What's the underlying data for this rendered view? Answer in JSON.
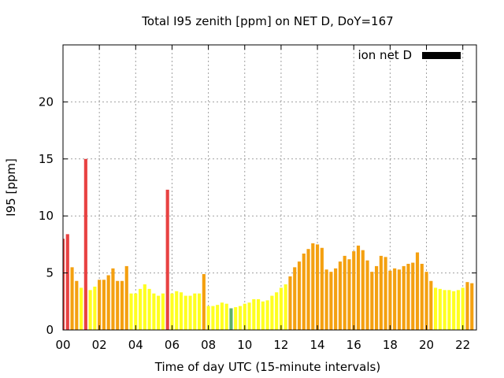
{
  "chart_data": {
    "type": "bar",
    "title": "Total I95 zenith [ppm] on NET D, DoY=167",
    "xlabel": "Time of day UTC (15-minute intervals)",
    "ylabel": "I95 [ppm]",
    "xlim": [
      0,
      22.75
    ],
    "ylim": [
      0,
      25
    ],
    "x_ticks": [
      "00",
      "02",
      "04",
      "06",
      "08",
      "10",
      "12",
      "14",
      "16",
      "18",
      "20",
      "22"
    ],
    "y_ticks": [
      "0",
      "5",
      "10",
      "15",
      "20"
    ],
    "grid": true,
    "legend": {
      "label": "ion net D",
      "color": "#000000",
      "placement": "top-right"
    },
    "category_colors": {
      "red": "#e84242",
      "orange": "#f4a010",
      "yellow": "#ffff20",
      "green": "#5db06c"
    },
    "bars": [
      {
        "t": 0.0,
        "v": 8.0,
        "c": "red"
      },
      {
        "t": 0.25,
        "v": 8.4,
        "c": "red"
      },
      {
        "t": 0.5,
        "v": 5.5,
        "c": "orange"
      },
      {
        "t": 0.75,
        "v": 4.3,
        "c": "orange"
      },
      {
        "t": 1.0,
        "v": 3.7,
        "c": "yellow"
      },
      {
        "t": 1.25,
        "v": 15.0,
        "c": "red"
      },
      {
        "t": 1.5,
        "v": 3.5,
        "c": "yellow"
      },
      {
        "t": 1.75,
        "v": 3.8,
        "c": "yellow"
      },
      {
        "t": 2.0,
        "v": 4.4,
        "c": "orange"
      },
      {
        "t": 2.25,
        "v": 4.4,
        "c": "orange"
      },
      {
        "t": 2.5,
        "v": 4.8,
        "c": "orange"
      },
      {
        "t": 2.75,
        "v": 5.4,
        "c": "orange"
      },
      {
        "t": 3.0,
        "v": 4.3,
        "c": "orange"
      },
      {
        "t": 3.25,
        "v": 4.3,
        "c": "orange"
      },
      {
        "t": 3.5,
        "v": 5.6,
        "c": "orange"
      },
      {
        "t": 3.75,
        "v": 3.2,
        "c": "yellow"
      },
      {
        "t": 4.0,
        "v": 3.2,
        "c": "yellow"
      },
      {
        "t": 4.25,
        "v": 3.6,
        "c": "yellow"
      },
      {
        "t": 4.5,
        "v": 4.0,
        "c": "yellow"
      },
      {
        "t": 4.75,
        "v": 3.6,
        "c": "yellow"
      },
      {
        "t": 5.0,
        "v": 3.2,
        "c": "yellow"
      },
      {
        "t": 5.25,
        "v": 3.0,
        "c": "yellow"
      },
      {
        "t": 5.5,
        "v": 3.2,
        "c": "yellow"
      },
      {
        "t": 5.75,
        "v": 12.3,
        "c": "red"
      },
      {
        "t": 6.0,
        "v": 3.2,
        "c": "yellow"
      },
      {
        "t": 6.25,
        "v": 3.4,
        "c": "yellow"
      },
      {
        "t": 6.5,
        "v": 3.3,
        "c": "yellow"
      },
      {
        "t": 6.75,
        "v": 3.0,
        "c": "yellow"
      },
      {
        "t": 7.0,
        "v": 3.0,
        "c": "yellow"
      },
      {
        "t": 7.25,
        "v": 3.2,
        "c": "yellow"
      },
      {
        "t": 7.5,
        "v": 3.2,
        "c": "yellow"
      },
      {
        "t": 7.75,
        "v": 4.9,
        "c": "orange"
      },
      {
        "t": 8.0,
        "v": 2.1,
        "c": "yellow"
      },
      {
        "t": 8.25,
        "v": 2.1,
        "c": "yellow"
      },
      {
        "t": 8.5,
        "v": 2.2,
        "c": "yellow"
      },
      {
        "t": 8.75,
        "v": 2.4,
        "c": "yellow"
      },
      {
        "t": 9.0,
        "v": 2.3,
        "c": "yellow"
      },
      {
        "t": 9.25,
        "v": 1.9,
        "c": "green"
      },
      {
        "t": 9.5,
        "v": 2.0,
        "c": "yellow"
      },
      {
        "t": 9.75,
        "v": 2.1,
        "c": "yellow"
      },
      {
        "t": 10.0,
        "v": 2.3,
        "c": "yellow"
      },
      {
        "t": 10.25,
        "v": 2.4,
        "c": "yellow"
      },
      {
        "t": 10.5,
        "v": 2.7,
        "c": "yellow"
      },
      {
        "t": 10.75,
        "v": 2.7,
        "c": "yellow"
      },
      {
        "t": 11.0,
        "v": 2.5,
        "c": "yellow"
      },
      {
        "t": 11.25,
        "v": 2.6,
        "c": "yellow"
      },
      {
        "t": 11.5,
        "v": 3.0,
        "c": "yellow"
      },
      {
        "t": 11.75,
        "v": 3.3,
        "c": "yellow"
      },
      {
        "t": 12.0,
        "v": 3.7,
        "c": "yellow"
      },
      {
        "t": 12.25,
        "v": 4.0,
        "c": "yellow"
      },
      {
        "t": 12.5,
        "v": 4.7,
        "c": "orange"
      },
      {
        "t": 12.75,
        "v": 5.5,
        "c": "orange"
      },
      {
        "t": 13.0,
        "v": 6.0,
        "c": "orange"
      },
      {
        "t": 13.25,
        "v": 6.7,
        "c": "orange"
      },
      {
        "t": 13.5,
        "v": 7.1,
        "c": "orange"
      },
      {
        "t": 13.75,
        "v": 7.6,
        "c": "orange"
      },
      {
        "t": 14.0,
        "v": 7.5,
        "c": "orange"
      },
      {
        "t": 14.25,
        "v": 7.2,
        "c": "orange"
      },
      {
        "t": 14.5,
        "v": 5.3,
        "c": "orange"
      },
      {
        "t": 14.75,
        "v": 5.1,
        "c": "orange"
      },
      {
        "t": 15.0,
        "v": 5.4,
        "c": "orange"
      },
      {
        "t": 15.25,
        "v": 6.0,
        "c": "orange"
      },
      {
        "t": 15.5,
        "v": 6.5,
        "c": "orange"
      },
      {
        "t": 15.75,
        "v": 6.2,
        "c": "orange"
      },
      {
        "t": 16.0,
        "v": 6.9,
        "c": "orange"
      },
      {
        "t": 16.25,
        "v": 7.4,
        "c": "orange"
      },
      {
        "t": 16.5,
        "v": 7.0,
        "c": "orange"
      },
      {
        "t": 16.75,
        "v": 6.1,
        "c": "orange"
      },
      {
        "t": 17.0,
        "v": 5.1,
        "c": "orange"
      },
      {
        "t": 17.25,
        "v": 5.6,
        "c": "orange"
      },
      {
        "t": 17.5,
        "v": 6.5,
        "c": "orange"
      },
      {
        "t": 17.75,
        "v": 6.4,
        "c": "orange"
      },
      {
        "t": 18.0,
        "v": 5.2,
        "c": "orange"
      },
      {
        "t": 18.25,
        "v": 5.4,
        "c": "orange"
      },
      {
        "t": 18.5,
        "v": 5.3,
        "c": "orange"
      },
      {
        "t": 18.75,
        "v": 5.6,
        "c": "orange"
      },
      {
        "t": 19.0,
        "v": 5.8,
        "c": "orange"
      },
      {
        "t": 19.25,
        "v": 5.9,
        "c": "orange"
      },
      {
        "t": 19.5,
        "v": 6.8,
        "c": "orange"
      },
      {
        "t": 19.75,
        "v": 5.8,
        "c": "orange"
      },
      {
        "t": 20.0,
        "v": 5.1,
        "c": "orange"
      },
      {
        "t": 20.25,
        "v": 4.3,
        "c": "orange"
      },
      {
        "t": 20.5,
        "v": 3.7,
        "c": "yellow"
      },
      {
        "t": 20.75,
        "v": 3.6,
        "c": "yellow"
      },
      {
        "t": 21.0,
        "v": 3.5,
        "c": "yellow"
      },
      {
        "t": 21.25,
        "v": 3.5,
        "c": "yellow"
      },
      {
        "t": 21.5,
        "v": 3.4,
        "c": "yellow"
      },
      {
        "t": 21.75,
        "v": 3.5,
        "c": "yellow"
      },
      {
        "t": 22.0,
        "v": 3.7,
        "c": "yellow"
      },
      {
        "t": 22.25,
        "v": 4.2,
        "c": "orange"
      },
      {
        "t": 22.5,
        "v": 4.1,
        "c": "orange"
      }
    ]
  }
}
